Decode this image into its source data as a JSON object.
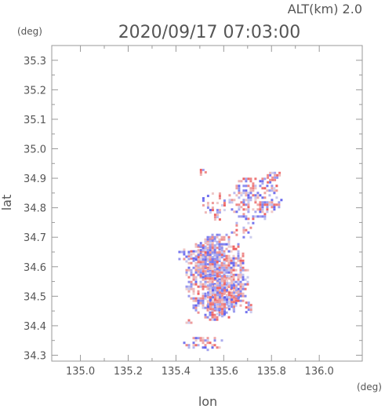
{
  "chart_data": {
    "type": "heatmap",
    "header_right": "ALT(km) 2.0",
    "title": "2020/09/17 07:03:00",
    "xlabel": "lon",
    "ylabel": "lat",
    "x_unit": "(deg)",
    "y_unit": "(deg)",
    "xlim": [
      134.88,
      136.18
    ],
    "ylim": [
      34.28,
      35.35
    ],
    "x_ticks": [
      "135.0",
      "135.2",
      "135.4",
      "135.6",
      "135.8",
      "136.0"
    ],
    "x_tick_values": [
      135.0,
      135.2,
      135.4,
      135.6,
      135.8,
      136.0
    ],
    "y_ticks": [
      "34.3",
      "34.4",
      "34.5",
      "34.6",
      "34.7",
      "34.8",
      "34.9",
      "35.0",
      "35.1",
      "35.2",
      "35.3"
    ],
    "y_tick_values": [
      34.3,
      34.4,
      34.5,
      34.6,
      34.7,
      34.8,
      34.9,
      35.0,
      35.1,
      35.2,
      35.3
    ],
    "grid": false,
    "colors": {
      "positive": "#ee3333",
      "negative": "#3333ee",
      "axis": "#999999",
      "text": "#555555"
    },
    "echo_regions": [
      {
        "lon": [
          135.43,
          135.7
        ],
        "lat": [
          34.42,
          34.72
        ],
        "density": 0.85
      },
      {
        "lon": [
          135.47,
          135.6
        ],
        "lat": [
          34.56,
          34.7
        ],
        "density": 0.9
      },
      {
        "lon": [
          135.52,
          135.66
        ],
        "lat": [
          34.43,
          34.58
        ],
        "density": 0.85
      },
      {
        "lon": [
          135.4,
          135.47
        ],
        "lat": [
          34.62,
          34.67
        ],
        "density": 0.6
      },
      {
        "lon": [
          135.61,
          135.84
        ],
        "lat": [
          34.76,
          34.91
        ],
        "density": 0.55
      },
      {
        "lon": [
          135.5,
          135.62
        ],
        "lat": [
          34.76,
          34.86
        ],
        "density": 0.3
      },
      {
        "lon": [
          135.42,
          135.6
        ],
        "lat": [
          34.32,
          34.37
        ],
        "density": 0.5
      },
      {
        "lon": [
          135.49,
          135.52
        ],
        "lat": [
          34.91,
          34.94
        ],
        "density": 0.7
      },
      {
        "lon": [
          135.77,
          135.84
        ],
        "lat": [
          34.88,
          34.93
        ],
        "density": 0.7
      },
      {
        "lon": [
          135.68,
          135.72
        ],
        "lat": [
          34.44,
          34.49
        ],
        "density": 0.6
      },
      {
        "lon": [
          135.43,
          135.47
        ],
        "lat": [
          34.4,
          34.43
        ],
        "density": 0.5
      },
      {
        "lon": [
          135.62,
          135.74
        ],
        "lat": [
          34.7,
          34.76
        ],
        "density": 0.35
      }
    ]
  }
}
